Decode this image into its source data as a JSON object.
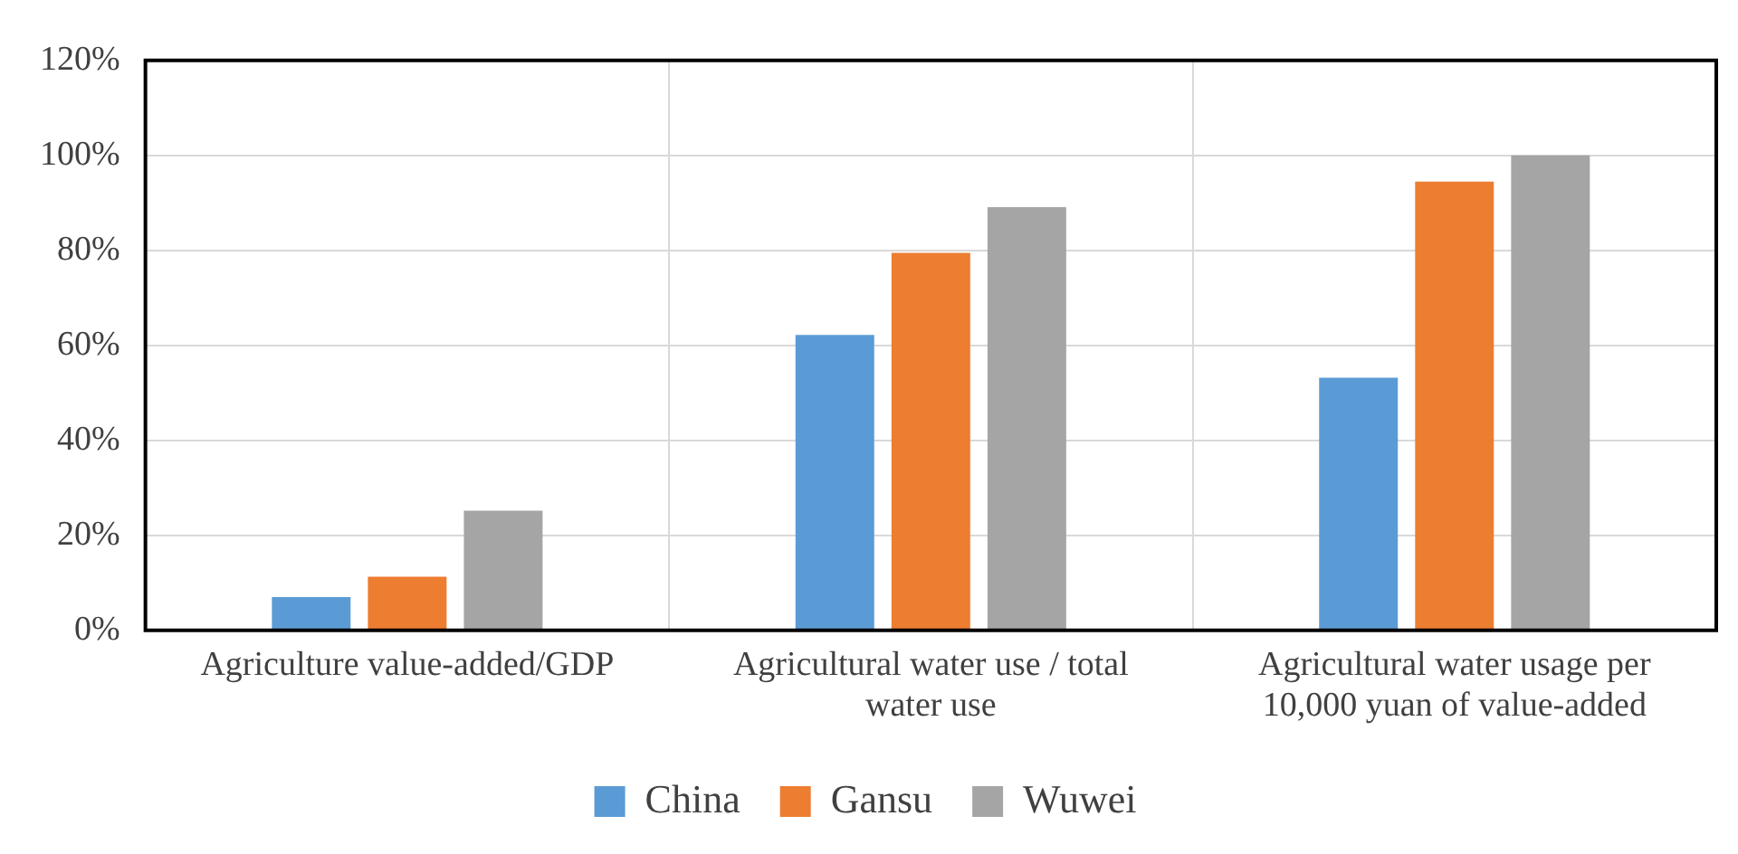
{
  "chart_data": {
    "type": "bar",
    "categories": [
      "Agriculture value-added/GDP",
      "Agricultural water use / total water use",
      "Agricultural water usage per 10,000 yuan of value-added"
    ],
    "series": [
      {
        "name": "China",
        "color": "#5b9bd5",
        "values": [
          7,
          62.2,
          53.2
        ]
      },
      {
        "name": "Gansu",
        "color": "#ed7d31",
        "values": [
          11.3,
          79.5,
          94.5
        ]
      },
      {
        "name": "Wuwei",
        "color": "#a5a5a5",
        "values": [
          25.2,
          89.1,
          100
        ]
      }
    ],
    "ylim": [
      0,
      120
    ],
    "yticks": [
      {
        "value": 0,
        "label": "0%"
      },
      {
        "value": 20,
        "label": "20%"
      },
      {
        "value": 40,
        "label": "40%"
      },
      {
        "value": 60,
        "label": "60%"
      },
      {
        "value": 80,
        "label": "80%"
      },
      {
        "value": 100,
        "label": "100%"
      },
      {
        "value": 120,
        "label": "120%"
      }
    ],
    "grid": true,
    "legend": "bottom"
  }
}
